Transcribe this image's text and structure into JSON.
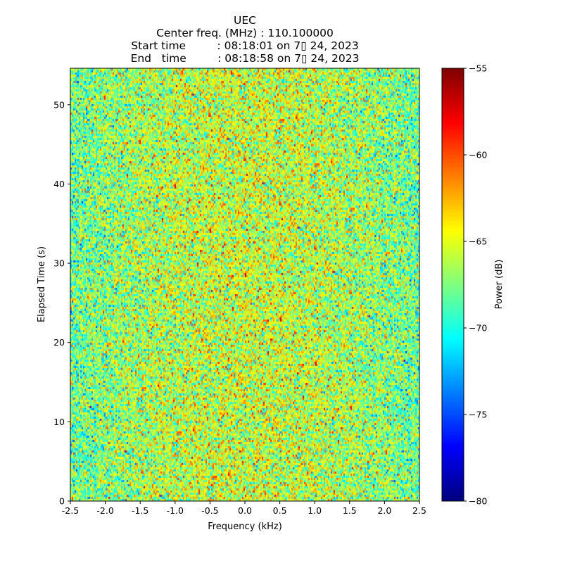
{
  "chart_data": {
    "type": "heatmap",
    "title_lines": [
      "UEC",
      "Center freq. (MHz) : 110.100000",
      "Start time         : 08:18:01 on 7▯ 24, 2023",
      "End   time         : 08:18:58 on 7▯ 24, 2023"
    ],
    "xlabel": "Frequency (kHz)",
    "ylabel": "Elapsed Time (s)",
    "xlim": [
      -2.5,
      2.5
    ],
    "ylim": [
      0,
      54.6
    ],
    "xticks": [
      "-2.5",
      "-2.0",
      "-1.5",
      "-1.0",
      "-0.5",
      "0.0",
      "0.5",
      "1.0",
      "1.5",
      "2.0",
      "2.5"
    ],
    "yticks": [
      "0",
      "10",
      "20",
      "30",
      "40",
      "50"
    ],
    "colorbar": {
      "label": "Power (dB)",
      "range": [
        -80,
        -55
      ],
      "ticks": [
        "−80",
        "−75",
        "−70",
        "−65",
        "−60",
        "−55"
      ],
      "colormap": "jet"
    },
    "grid": false,
    "description_values": {
      "typical_power_db": -68,
      "center_bias_db": 2.5
    }
  }
}
